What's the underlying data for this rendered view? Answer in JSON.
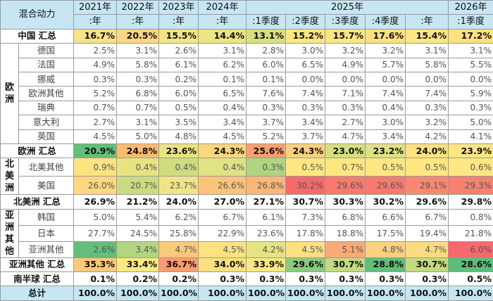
{
  "title": "混合动力",
  "headers": {
    "row1": [
      "2021年",
      "2022年",
      "2023年",
      "2024年",
      "2025年",
      "2026年"
    ],
    "row2": [
      ":年",
      ":年",
      ":年",
      ":年",
      ":1季度",
      ":2季度",
      ":3季度",
      ":4季度",
      ":年",
      ":1季度"
    ]
  },
  "rows": [
    {
      "type": "total",
      "label": "中国 汇总",
      "values": [
        "16.7%",
        "20.5%",
        "15.5%",
        "14.4%",
        "13.1%",
        "15.2%",
        "15.7%",
        "17.6%",
        "15.4%",
        "17.2%"
      ],
      "colors": [
        "#f9e08a",
        "#fcd584",
        "#f3e487",
        "#eae483",
        "#d7df7f",
        "#fbe783",
        "#fde585",
        "#fee083",
        "#fde585",
        "#fee083"
      ]
    },
    {
      "type": "item",
      "group": "欧洲",
      "label": "德国",
      "values": [
        "2.5%",
        "3.1%",
        "2.6%",
        "3.1%",
        "2.8%",
        "3.0%",
        "3.2%",
        "3.2%",
        "3.1%",
        "3.1%"
      ]
    },
    {
      "type": "item",
      "label": "法国",
      "values": [
        "4.9%",
        "5.8%",
        "6.1%",
        "6.2%",
        "6.0%",
        "6.5%",
        "4.9%",
        "5.7%",
        "5.8%",
        "5.5%"
      ]
    },
    {
      "type": "item",
      "label": "挪威",
      "values": [
        "0.3%",
        "0.3%",
        "0.2%",
        "0.1%",
        "0.1%",
        "0.0%",
        "0.0%",
        "0.0%",
        "0.0%",
        "0.0%"
      ]
    },
    {
      "type": "item",
      "label": "欧洲其他",
      "values": [
        "5.2%",
        "6.8%",
        "6.0%",
        "6.5%",
        "7.6%",
        "7.4%",
        "7.1%",
        "7.4%",
        "7.4%",
        "5.9%"
      ]
    },
    {
      "type": "item",
      "label": "瑞典",
      "values": [
        "0.7%",
        "0.7%",
        "0.5%",
        "0.4%",
        "0.3%",
        "0.3%",
        "0.3%",
        "0.4%",
        "0.3%",
        "0.3%"
      ]
    },
    {
      "type": "item",
      "label": "意大利",
      "values": [
        "2.7%",
        "3.1%",
        "3.5%",
        "3.4%",
        "3.7%",
        "3.4%",
        "2.7%",
        "3.0%",
        "3.2%",
        "5.0%"
      ]
    },
    {
      "type": "item",
      "label": "英国",
      "values": [
        "4.5%",
        "5.0%",
        "4.8%",
        "4.5%",
        "5.2%",
        "3.7%",
        "4.7%",
        "3.4%",
        "4.2%",
        "4.1%"
      ]
    },
    {
      "type": "total",
      "label": "欧洲 汇总",
      "values": [
        "20.9%",
        "24.8%",
        "23.6%",
        "24.3%",
        "25.6%",
        "24.3%",
        "23.0%",
        "23.2%",
        "24.0%",
        "23.9%"
      ],
      "colors": [
        "#63be7b",
        "#fbbb73",
        "#e9e482",
        "#fcd580",
        "#f9a070",
        "#fcd07e",
        "#d5df80",
        "#dfe282",
        "#fde183",
        "#fee683"
      ]
    },
    {
      "type": "item",
      "group": "北美洲",
      "label": "北美其他",
      "values": [
        "0.9%",
        "0.4%",
        "0.4%",
        "0.4%",
        "0.3%",
        "0.5%",
        "0.7%",
        "0.5%",
        "0.5%",
        "0.6%"
      ],
      "colors": [
        "#fde382",
        "#e6e383",
        "#cfdd7f",
        "#e0e283",
        "#b0d47f",
        "#fee783",
        "#fee783",
        "#fee783",
        "#fee783",
        "#fee783"
      ]
    },
    {
      "type": "item",
      "label": "美国",
      "values": [
        "26.0%",
        "20.7%",
        "23.7%",
        "26.6%",
        "26.8%",
        "30.2%",
        "29.6%",
        "29.6%",
        "29.1%",
        "29.3%"
      ],
      "colors": [
        "#fed880",
        "#cbdc80",
        "#f0e583",
        "#fbc478",
        "#fbb776",
        "#f8696b",
        "#f8796d",
        "#f8796d",
        "#f98870",
        "#f8806e"
      ]
    },
    {
      "type": "total",
      "label": "北美洲 汇总",
      "values": [
        "26.9%",
        "21.2%",
        "24.0%",
        "27.0%",
        "27.1%",
        "30.7%",
        "30.3%",
        "30.2%",
        "29.6%",
        "29.8%"
      ]
    },
    {
      "type": "item",
      "group": "亚洲其他",
      "label": "韩国",
      "values": [
        "5.0%",
        "5.4%",
        "6.2%",
        "6.7%",
        "6.1%",
        "7.3%",
        "6.8%",
        "6.6%",
        "6.7%",
        "0.8%"
      ]
    },
    {
      "type": "item",
      "label": "日本",
      "values": [
        "27.7%",
        "24.5%",
        "25.8%",
        "22.9%",
        "23.6%",
        "17.8%",
        "18.8%",
        "17.5%",
        "19.4%",
        "21.8%"
      ]
    },
    {
      "type": "item",
      "label": "亚洲其他",
      "values": [
        "2.6%",
        "3.4%",
        "4.7%",
        "4.5%",
        "4.2%",
        "4.5%",
        "5.1%",
        "4.8%",
        "4.7%",
        "6.0%"
      ],
      "colors": [
        "#63be7b",
        "#b4d57f",
        "#fcc87a",
        "#fee182",
        "#e6e383",
        "#fee082",
        "#fbaa74",
        "#fdd17e",
        "#fedb81",
        "#f8696b"
      ]
    },
    {
      "type": "total",
      "label": "亚洲其他 汇总",
      "values": [
        "35.3%",
        "33.4%",
        "36.7%",
        "34.0%",
        "33.9%",
        "29.6%",
        "30.7%",
        "28.8%",
        "30.7%",
        "28.6%"
      ],
      "colors": [
        "#fcc97b",
        "#fee983",
        "#fa9d71",
        "#fedf82",
        "#fee783",
        "#8ccb7d",
        "#c4da80",
        "#63be7b",
        "#c4da80",
        "#5fbd7a"
      ]
    },
    {
      "type": "total",
      "label": "南半球 汇总",
      "values": [
        "0.1%",
        "0.2%",
        "0.2%",
        "0.3%",
        "0.3%",
        "0.3%",
        "0.3%",
        "0.3%",
        "0.3%",
        "0.5%"
      ]
    },
    {
      "type": "sum",
      "label": "总计",
      "values": [
        "100.0%",
        "100.0%",
        "100.0%",
        "100.0%",
        "100.0%",
        "100.0%",
        "100.0%",
        "100.0%",
        "100.0%",
        "100.0%"
      ]
    }
  ]
}
